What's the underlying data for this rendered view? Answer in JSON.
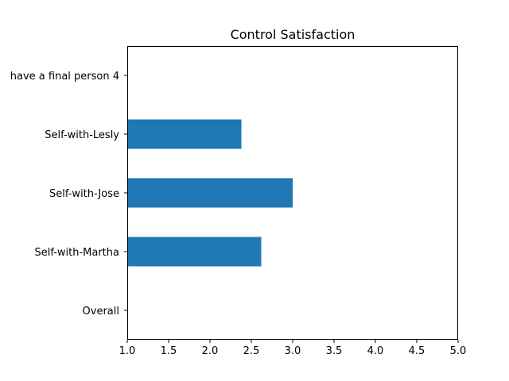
{
  "chart_data": {
    "type": "bar",
    "orientation": "horizontal",
    "title": "Control Satisfaction",
    "xlabel": "",
    "ylabel": "",
    "categories": [
      "Overall",
      "Self-with-Martha",
      "Self-with-Jose",
      "Self-with-Lesly",
      "have a final person 4"
    ],
    "values": [
      1.0,
      2.62,
      3.0,
      2.38,
      1.0
    ],
    "xlim": [
      1.0,
      5.0
    ],
    "xticks": [
      "1.0",
      "1.5",
      "2.0",
      "2.5",
      "3.0",
      "3.5",
      "4.0",
      "4.5",
      "5.0"
    ],
    "bar_color": "#1f77b4",
    "grid": false,
    "legend": "none"
  }
}
